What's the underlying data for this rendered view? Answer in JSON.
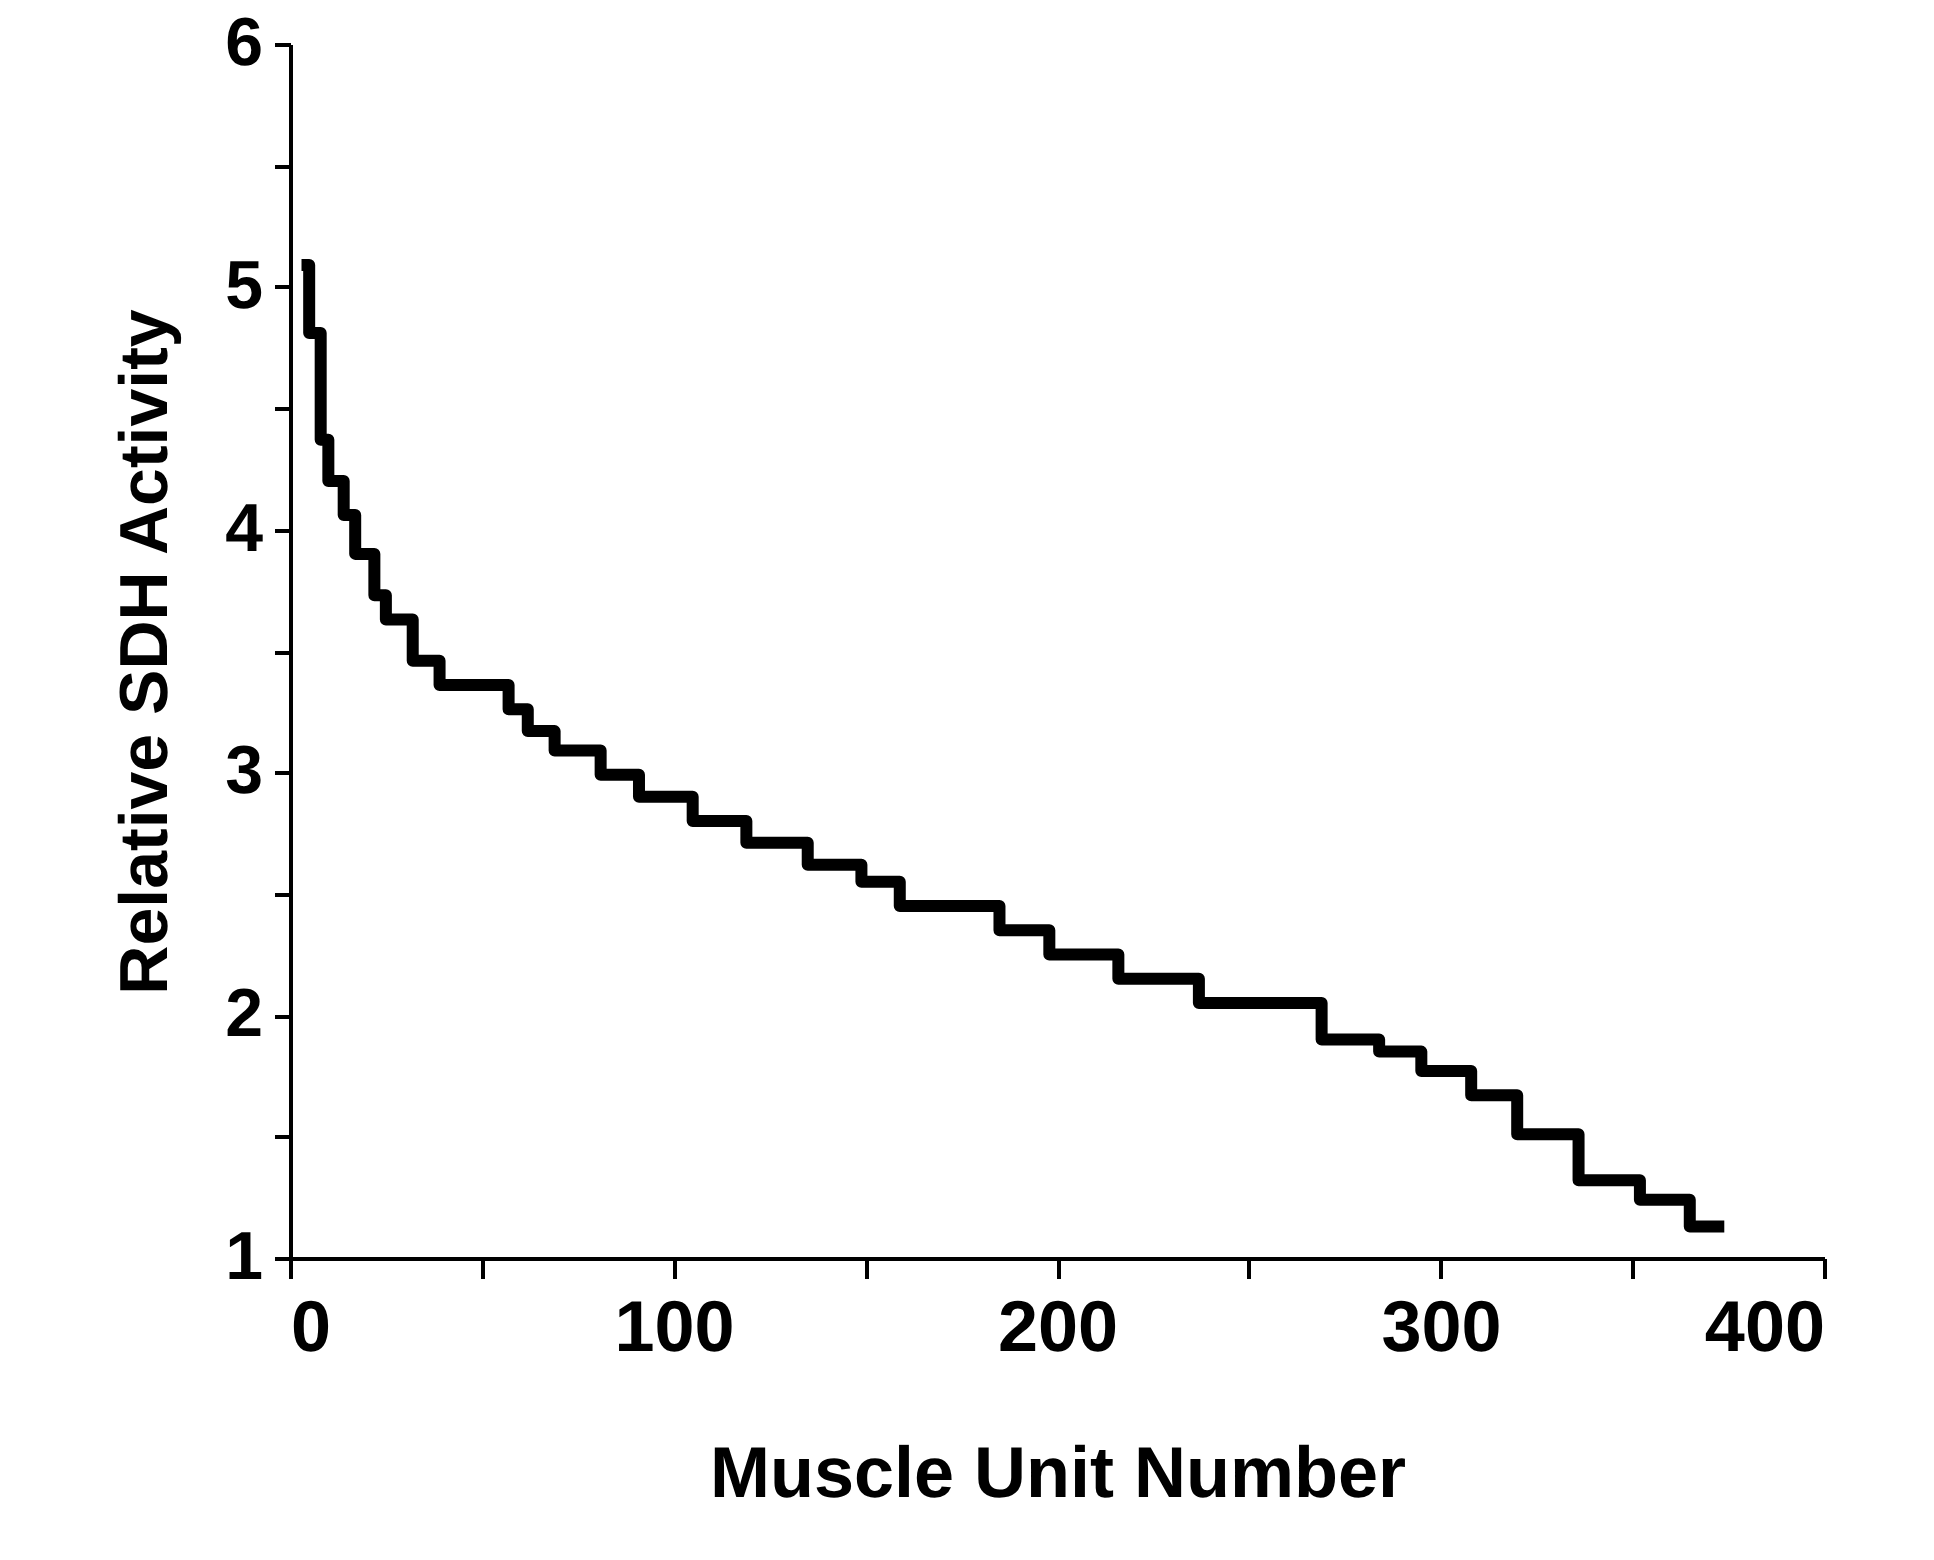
{
  "chart_data": {
    "type": "step",
    "xlabel": "Muscle Unit Number",
    "ylabel": "Relative SDH Activity",
    "xlim": [
      0,
      400
    ],
    "ylim": [
      1,
      6
    ],
    "xticks": [
      0,
      {
        "value": 50,
        "label": null
      },
      100,
      {
        "value": 150,
        "label": null
      },
      200,
      {
        "value": 250,
        "label": null
      },
      300,
      {
        "value": 350,
        "label": null
      },
      400
    ],
    "yticks": [
      1,
      {
        "value": 1.5,
        "label": null
      },
      2,
      {
        "value": 2.5,
        "label": null
      },
      3,
      {
        "value": 3.5,
        "label": null
      },
      4,
      {
        "value": 4.5,
        "label": null
      },
      5,
      {
        "value": 5.5,
        "label": null
      },
      6
    ],
    "grid": false,
    "marker": "none",
    "line_style": "solid",
    "series": [
      {
        "color": "#000000",
        "x": [
          3,
          5,
          8,
          10,
          14,
          17,
          22,
          25,
          32,
          39,
          48,
          57,
          62,
          69,
          81,
          91,
          105,
          119,
          135,
          149,
          159,
          185,
          198,
          216,
          237,
          269,
          284,
          295,
          308,
          320,
          336,
          352,
          365,
          374
        ],
        "values": [
          5.09,
          4.81,
          4.37,
          4.2,
          4.06,
          3.9,
          3.73,
          3.63,
          3.46,
          3.36,
          3.36,
          3.26,
          3.17,
          3.09,
          2.99,
          2.9,
          2.8,
          2.71,
          2.62,
          2.55,
          2.45,
          2.35,
          2.25,
          2.15,
          2.05,
          1.9,
          1.85,
          1.77,
          1.67,
          1.51,
          1.32,
          1.24,
          1.13,
          1.13
        ]
      }
    ]
  }
}
